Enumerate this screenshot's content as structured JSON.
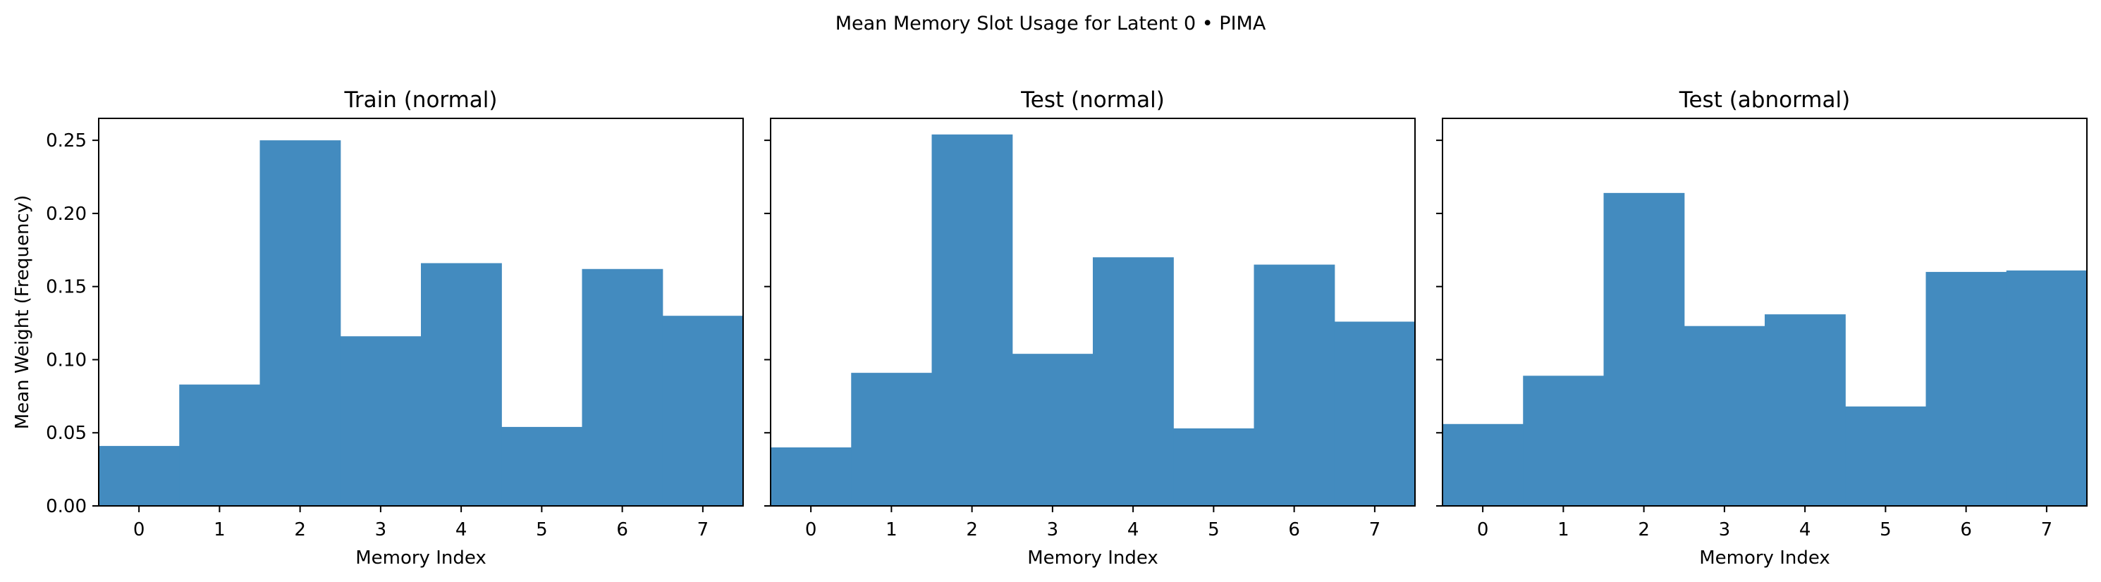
{
  "figure": {
    "suptitle": "Mean Memory Slot Usage for Latent 0 • PIMA",
    "bar_color": "#438bbf"
  },
  "chart_data": [
    {
      "type": "bar",
      "title": "Train (normal)",
      "xlabel": "Memory Index",
      "ylabel": "Mean Weight (Frequency)",
      "categories": [
        "0",
        "1",
        "2",
        "3",
        "4",
        "5",
        "6",
        "7"
      ],
      "values": [
        0.041,
        0.083,
        0.25,
        0.116,
        0.166,
        0.054,
        0.162,
        0.13
      ],
      "ylim": [
        0,
        0.265
      ],
      "yticks": [
        "0.00",
        "0.05",
        "0.10",
        "0.15",
        "0.20",
        "0.25"
      ],
      "grid": false
    },
    {
      "type": "bar",
      "title": "Test (normal)",
      "xlabel": "Memory Index",
      "ylabel": "",
      "categories": [
        "0",
        "1",
        "2",
        "3",
        "4",
        "5",
        "6",
        "7"
      ],
      "values": [
        0.04,
        0.091,
        0.254,
        0.104,
        0.17,
        0.053,
        0.165,
        0.126
      ],
      "ylim": [
        0,
        0.265
      ],
      "yticks": [
        "",
        "",
        "",
        "",
        "",
        ""
      ],
      "grid": false
    },
    {
      "type": "bar",
      "title": "Test (abnormal)",
      "xlabel": "Memory Index",
      "ylabel": "",
      "categories": [
        "0",
        "1",
        "2",
        "3",
        "4",
        "5",
        "6",
        "7"
      ],
      "values": [
        0.056,
        0.089,
        0.214,
        0.123,
        0.131,
        0.068,
        0.16,
        0.161
      ],
      "ylim": [
        0,
        0.265
      ],
      "yticks": [
        "",
        "",
        "",
        "",
        "",
        ""
      ],
      "grid": false
    }
  ]
}
